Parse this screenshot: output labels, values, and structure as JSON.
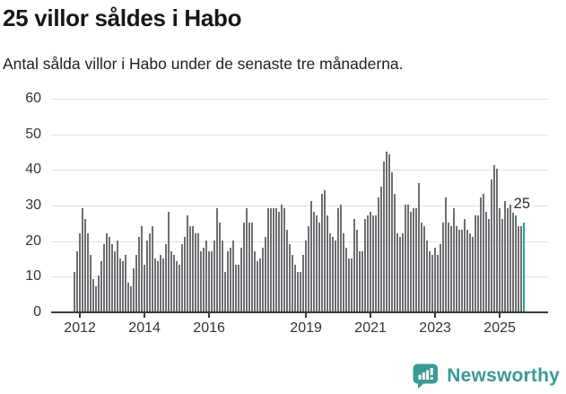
{
  "header": {
    "title": "25 villor såldes i Habo",
    "subtitle": "Antal sålda villor i Habo under de senaste tre månaderna."
  },
  "chart_data": {
    "type": "bar",
    "title": "25 villor såldes i Habo",
    "subtitle": "Antal sålda villor i Habo under de senaste tre månaderna.",
    "x_start": "2011-11",
    "x_interval": "month",
    "values": [
      11,
      17,
      22,
      29,
      26,
      22,
      16,
      9,
      7,
      10,
      14,
      19,
      22,
      21,
      19,
      17,
      20,
      15,
      14,
      16,
      8,
      7,
      12,
      16,
      21,
      24,
      13,
      20,
      22,
      24,
      15,
      14,
      16,
      15,
      19,
      28,
      17,
      16,
      14,
      13,
      19,
      21,
      27,
      24,
      24,
      22,
      22,
      17,
      18,
      20,
      17,
      17,
      20,
      29,
      25,
      20,
      11,
      17,
      18,
      20,
      13,
      13,
      18,
      25,
      29,
      25,
      25,
      17,
      14,
      15,
      18,
      21,
      29,
      29,
      29,
      29,
      28,
      30,
      29,
      23,
      19,
      16,
      13,
      11,
      11,
      16,
      20,
      24,
      31,
      28,
      27,
      25,
      33,
      34,
      27,
      22,
      21,
      20,
      29,
      30,
      22,
      18,
      15,
      15,
      26,
      23,
      17,
      17,
      26,
      27,
      28,
      27,
      27,
      32,
      35,
      42,
      45,
      44,
      39,
      33,
      22,
      21,
      22,
      30,
      30,
      28,
      29,
      29,
      36,
      25,
      24,
      20,
      17,
      16,
      18,
      16,
      19,
      25,
      32,
      25,
      24,
      29,
      24,
      23,
      23,
      26,
      23,
      22,
      21,
      27,
      27,
      32,
      33,
      28,
      26,
      37,
      41,
      40,
      29,
      26,
      31,
      29,
      30,
      28,
      27,
      24,
      24,
      25
    ],
    "highlight": {
      "index": 167,
      "label": "25",
      "color": "#2aa0a2"
    },
    "bar_color": "#6e6e73",
    "ylim": [
      0,
      60
    ],
    "yticks": [
      "0",
      "10",
      "20",
      "30",
      "40",
      "50",
      "60"
    ],
    "xticks": [
      {
        "label": "2012",
        "month_index": 2
      },
      {
        "label": "2014",
        "month_index": 26
      },
      {
        "label": "2016",
        "month_index": 50
      },
      {
        "label": "2019",
        "month_index": 86
      },
      {
        "label": "2021",
        "month_index": 110
      },
      {
        "label": "2023",
        "month_index": 134
      },
      {
        "label": "2025",
        "month_index": 158
      }
    ],
    "grid": "horizontal",
    "legend": "none"
  },
  "footer": {
    "brand": "Newsworthy",
    "brand_color": "#3a9a93"
  }
}
